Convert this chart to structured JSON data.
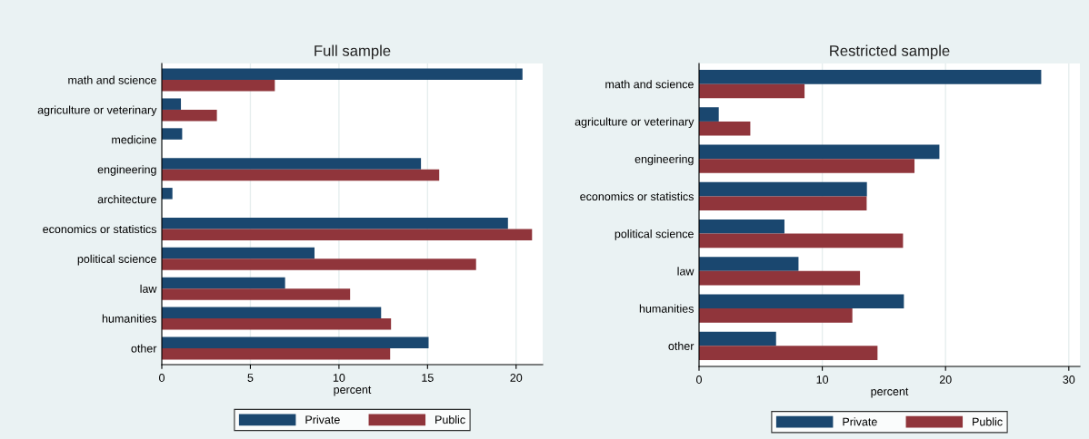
{
  "chart_data": [
    {
      "type": "bar",
      "orientation": "horizontal",
      "title": "Full sample",
      "xlabel": "percent",
      "categories": [
        "math and science",
        "agriculture or veterinary",
        "medicine",
        "engineering",
        "architecture",
        "economics or statistics",
        "political science",
        "law",
        "humanities",
        "other"
      ],
      "series": [
        {
          "name": "Private",
          "color": "#1a476f",
          "values": [
            20.36,
            1.08,
            1.15,
            14.63,
            0.6,
            19.54,
            8.62,
            6.96,
            12.38,
            15.06
          ]
        },
        {
          "name": "Public",
          "color": "#90353b",
          "values": [
            6.38,
            3.11,
            0,
            15.66,
            0,
            20.9,
            17.74,
            10.63,
            12.94,
            12.89
          ]
        }
      ],
      "xlim": [
        0,
        21.5
      ],
      "xticks": [
        0,
        5,
        10,
        15,
        20
      ],
      "grid": "x",
      "legend": "bottom"
    },
    {
      "type": "bar",
      "orientation": "horizontal",
      "title": "Restricted sample",
      "xlabel": "percent",
      "categories": [
        "math and science",
        "agriculture or veterinary",
        "engineering",
        "economics or statistics",
        "political science",
        "law",
        "humanities",
        "other"
      ],
      "series": [
        {
          "name": "Private",
          "color": "#1a476f",
          "values": [
            27.76,
            1.6,
            19.5,
            13.62,
            6.93,
            8.07,
            16.62,
            6.25
          ]
        },
        {
          "name": "Public",
          "color": "#90353b",
          "values": [
            8.56,
            4.16,
            17.48,
            13.6,
            16.55,
            13.06,
            12.44,
            14.48
          ]
        }
      ],
      "xlim": [
        0,
        30.9
      ],
      "xticks": [
        0,
        10,
        20,
        30
      ],
      "grid": "x",
      "legend": "bottom"
    }
  ]
}
